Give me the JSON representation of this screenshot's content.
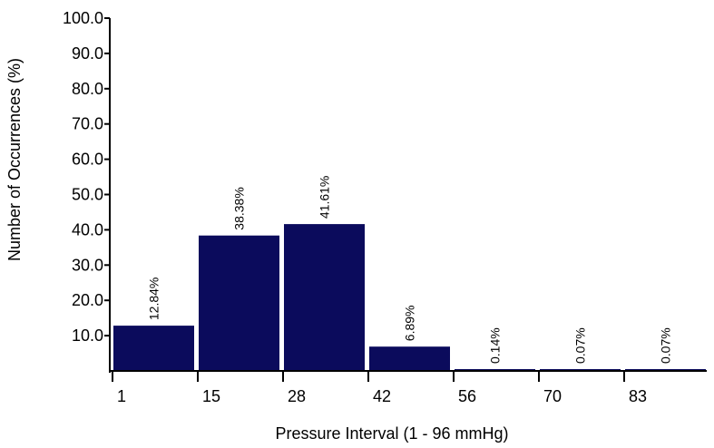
{
  "chart_data": {
    "type": "bar",
    "title": "",
    "xlabel": "Pressure Interval (1 - 96 mmHg)",
    "ylabel": "Number of Occurrences (%)",
    "ylim": [
      0,
      100
    ],
    "yticks": [
      "10.0",
      "20.0",
      "30.0",
      "40.0",
      "50.0",
      "60.0",
      "70.0",
      "80.0",
      "90.0",
      "100.0"
    ],
    "x_tick_labels": [
      "1",
      "15",
      "28",
      "42",
      "56",
      "70",
      "83"
    ],
    "values": [
      12.84,
      38.38,
      41.61,
      6.89,
      0.14,
      0.07,
      0.07
    ],
    "data_labels": [
      "12.84%",
      "38.38%",
      "41.61%",
      "6.89%",
      "0.14%",
      "0.07%",
      "0.07%"
    ],
    "bar_color": "#0b0b5c",
    "grid": false,
    "legend": "none"
  }
}
